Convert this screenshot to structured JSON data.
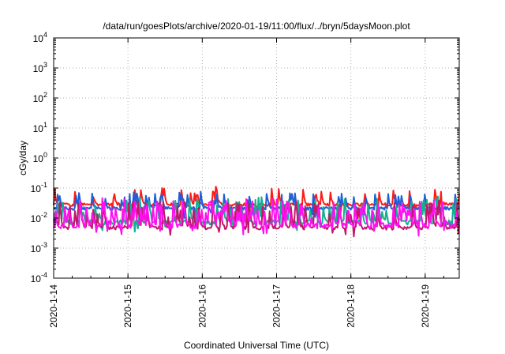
{
  "chart_data": {
    "type": "line",
    "title": "/data/run/goesPlots/archive/2020-01-19/11:00/flux/../bryn/5daysMoon.plot",
    "xlabel": "Coordinated Universal Time (UTC)",
    "ylabel": "cGy/day",
    "y_scale": "log",
    "ylim": [
      0.0001,
      10000
    ],
    "y_ticks": [
      {
        "value": 0.0001,
        "base": "10",
        "exp": "-4"
      },
      {
        "value": 0.001,
        "base": "10",
        "exp": "-3"
      },
      {
        "value": 0.01,
        "base": "10",
        "exp": "-2"
      },
      {
        "value": 0.1,
        "base": "10",
        "exp": "-1"
      },
      {
        "value": 1,
        "base": "10",
        "exp": "0"
      },
      {
        "value": 10,
        "base": "10",
        "exp": "1"
      },
      {
        "value": 100,
        "base": "10",
        "exp": "2"
      },
      {
        "value": 1000,
        "base": "10",
        "exp": "3"
      },
      {
        "value": 10000,
        "base": "10",
        "exp": "4"
      }
    ],
    "x_ticks": [
      "2020-1-14",
      "2020-1-15",
      "2020-1-16",
      "2020-1-17",
      "2020-1-18",
      "2020-1-19"
    ],
    "xlim": [
      "2020-01-14T00:00",
      "2020-01-19T11:00"
    ],
    "grid": true,
    "legend": "none",
    "series": [
      {
        "color": "#ff1a1a",
        "base": 0.028,
        "spike_prob": 0.1,
        "spike_max": 2.6,
        "noise": 0.12,
        "seed": 11
      },
      {
        "color": "#1f5fd6",
        "base": 0.021,
        "spike_prob": 0.1,
        "spike_max": 2.4,
        "noise": 0.12,
        "seed": 23
      },
      {
        "color": "#10b090",
        "base": 0.0072,
        "spike_prob": 0.16,
        "spike_max": 5.5,
        "noise": 0.18,
        "seed": 37
      },
      {
        "color": "#c0186a",
        "base": 0.0048,
        "spike_prob": 0.16,
        "spike_max": 6.5,
        "noise": 0.16,
        "seed": 41
      },
      {
        "color": "#ff10f0",
        "base": 0.0055,
        "spike_prob": 0.22,
        "spike_max": 7.0,
        "noise": 0.22,
        "seed": 53
      }
    ]
  }
}
